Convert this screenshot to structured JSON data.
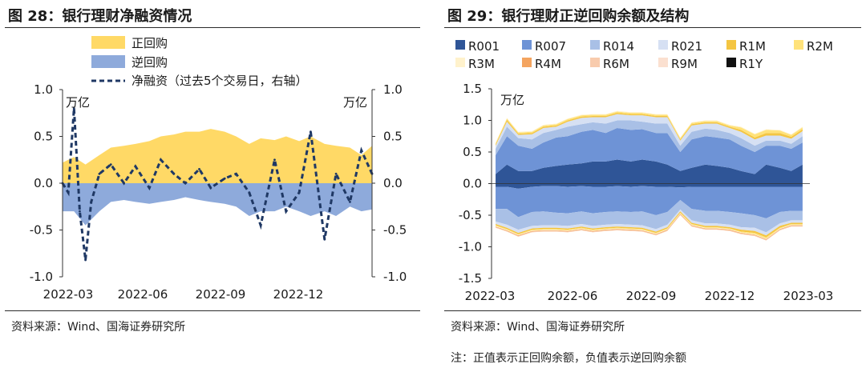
{
  "left": {
    "title": "图 28：银行理财净融资情况",
    "source": "资料来源：Wind、国海证券研究所",
    "left_unit": "万亿",
    "right_unit": "万亿"
  },
  "right": {
    "title": "图 29：银行理财正逆回购余额及结构",
    "source": "资料来源：Wind、国海证券研究所",
    "note": "注：正值表示正回购余额，负值表示逆回购余额",
    "unit": "万亿"
  },
  "colors": {
    "repo": "#ffd966",
    "reverse_repo": "#8eaadb",
    "net": "#1f3864",
    "R001": "#2f5597",
    "R007": "#6e93d6",
    "R014": "#a9c0e6",
    "R021": "#d6e0f3",
    "R1M": "#f4c542",
    "R2M": "#ffe27a",
    "R3M": "#fff2cc",
    "R4M": "#f4a460",
    "R6M": "#f8cbad",
    "R9M": "#fbe0d0",
    "R1Y": "#111111"
  },
  "chart_data": [
    {
      "type": "area",
      "x_ticks": [
        "2022-03",
        "2022-06",
        "2022-09",
        "2022-12"
      ],
      "x_range": [
        "2022-02-15",
        "2023-02-28"
      ],
      "ylim_left": [
        -1.0,
        1.0
      ],
      "ylim_right": [
        -1.0,
        1.0
      ],
      "y_ticks_left": [
        "1.0",
        "0.5",
        "0.0",
        "-0.5",
        "-1.0"
      ],
      "y_ticks_right": [
        "1.0",
        "0.5",
        "0.0",
        "-0.5",
        "-1.0"
      ],
      "series": [
        {
          "name": "正回购",
          "axis": "left",
          "x": [
            "2022-02-15",
            "2022-03-01",
            "2022-03-15",
            "2022-04-01",
            "2022-04-15",
            "2022-05-01",
            "2022-05-15",
            "2022-06-01",
            "2022-06-15",
            "2022-07-01",
            "2022-07-15",
            "2022-08-01",
            "2022-08-15",
            "2022-09-01",
            "2022-09-15",
            "2022-10-01",
            "2022-10-15",
            "2022-11-01",
            "2022-11-15",
            "2022-12-01",
            "2022-12-15",
            "2023-01-01",
            "2023-01-15",
            "2023-02-01",
            "2023-02-15",
            "2023-02-28"
          ],
          "values": [
            0.22,
            0.28,
            0.2,
            0.3,
            0.38,
            0.4,
            0.42,
            0.45,
            0.5,
            0.52,
            0.55,
            0.55,
            0.58,
            0.55,
            0.5,
            0.42,
            0.48,
            0.46,
            0.5,
            0.45,
            0.5,
            0.42,
            0.4,
            0.38,
            0.3,
            0.4
          ]
        },
        {
          "name": "逆回购",
          "axis": "left",
          "x": [
            "2022-02-15",
            "2022-03-01",
            "2022-03-15",
            "2022-04-01",
            "2022-04-15",
            "2022-05-01",
            "2022-05-15",
            "2022-06-01",
            "2022-06-15",
            "2022-07-01",
            "2022-07-15",
            "2022-08-01",
            "2022-08-15",
            "2022-09-01",
            "2022-09-15",
            "2022-10-01",
            "2022-10-15",
            "2022-11-01",
            "2022-11-15",
            "2022-12-01",
            "2022-12-15",
            "2023-01-01",
            "2023-01-15",
            "2023-02-01",
            "2023-02-15",
            "2023-02-28"
          ],
          "values": [
            -0.3,
            -0.3,
            -0.45,
            -0.3,
            -0.2,
            -0.18,
            -0.2,
            -0.22,
            -0.2,
            -0.18,
            -0.15,
            -0.18,
            -0.2,
            -0.22,
            -0.25,
            -0.35,
            -0.3,
            -0.3,
            -0.25,
            -0.3,
            -0.35,
            -0.3,
            -0.35,
            -0.25,
            -0.3,
            -0.28
          ]
        },
        {
          "name": "净融资（过去5个交易日，右轴）",
          "axis": "right",
          "x": [
            "2022-02-15",
            "2022-02-22",
            "2022-03-01",
            "2022-03-08",
            "2022-03-15",
            "2022-03-22",
            "2022-04-01",
            "2022-04-15",
            "2022-05-01",
            "2022-05-15",
            "2022-06-01",
            "2022-06-15",
            "2022-07-01",
            "2022-07-15",
            "2022-08-01",
            "2022-08-15",
            "2022-09-01",
            "2022-09-15",
            "2022-10-01",
            "2022-10-15",
            "2022-11-01",
            "2022-11-15",
            "2022-12-01",
            "2022-12-15",
            "2023-01-01",
            "2023-01-15",
            "2023-02-01",
            "2023-02-15",
            "2023-02-28"
          ],
          "values": [
            0.0,
            -0.1,
            0.8,
            -0.3,
            -0.82,
            -0.2,
            0.1,
            0.2,
            0.0,
            0.18,
            -0.05,
            0.25,
            0.1,
            0.0,
            0.15,
            -0.05,
            0.05,
            0.1,
            -0.1,
            -0.45,
            0.25,
            -0.3,
            -0.1,
            0.55,
            -0.6,
            0.1,
            -0.2,
            0.35,
            0.1
          ]
        }
      ]
    },
    {
      "type": "area",
      "x_ticks": [
        "2022-03",
        "2022-06",
        "2022-09",
        "2022-12",
        "2023-03"
      ],
      "x_range": [
        "2022-02-10",
        "2023-03-10"
      ],
      "ylim": [
        -1.5,
        1.5
      ],
      "y_ticks": [
        "1.5",
        "1.0",
        "0.5",
        "0.0",
        "-0.5",
        "-1.0",
        "-1.5"
      ],
      "x": [
        "2022-02-15",
        "2022-03-01",
        "2022-03-15",
        "2022-04-01",
        "2022-04-15",
        "2022-05-01",
        "2022-05-15",
        "2022-06-01",
        "2022-06-15",
        "2022-07-01",
        "2022-07-15",
        "2022-08-01",
        "2022-08-15",
        "2022-09-01",
        "2022-09-15",
        "2022-10-01",
        "2022-10-15",
        "2022-11-01",
        "2022-11-15",
        "2022-12-01",
        "2022-12-15",
        "2023-01-01",
        "2023-01-15",
        "2023-02-01",
        "2023-02-15",
        "2023-03-01"
      ],
      "series": [
        {
          "name": "R001",
          "positive": [
            0.15,
            0.3,
            0.2,
            0.2,
            0.25,
            0.28,
            0.3,
            0.32,
            0.35,
            0.35,
            0.38,
            0.35,
            0.38,
            0.35,
            0.3,
            0.2,
            0.25,
            0.3,
            0.28,
            0.25,
            0.2,
            0.15,
            0.3,
            0.25,
            0.2,
            0.3
          ],
          "negative": [
            -0.05,
            -0.05,
            -0.08,
            -0.05,
            -0.04,
            -0.04,
            -0.05,
            -0.04,
            -0.05,
            -0.05,
            -0.04,
            -0.05,
            -0.04,
            -0.05,
            -0.05,
            -0.06,
            -0.05,
            -0.05,
            -0.05,
            -0.05,
            -0.05,
            -0.05,
            -0.05,
            -0.05,
            -0.05,
            -0.05
          ]
        },
        {
          "name": "R007",
          "positive": [
            0.3,
            0.45,
            0.4,
            0.35,
            0.4,
            0.45,
            0.45,
            0.5,
            0.5,
            0.45,
            0.5,
            0.5,
            0.48,
            0.45,
            0.5,
            0.3,
            0.45,
            0.45,
            0.45,
            0.45,
            0.4,
            0.35,
            0.3,
            0.35,
            0.35,
            0.35
          ],
          "negative": [
            -0.35,
            -0.35,
            -0.45,
            -0.4,
            -0.4,
            -0.42,
            -0.42,
            -0.4,
            -0.42,
            -0.4,
            -0.4,
            -0.4,
            -0.4,
            -0.45,
            -0.4,
            -0.2,
            -0.35,
            -0.38,
            -0.38,
            -0.4,
            -0.42,
            -0.45,
            -0.5,
            -0.4,
            -0.38,
            -0.38
          ]
        },
        {
          "name": "R014",
          "positive": [
            0.1,
            0.15,
            0.12,
            0.15,
            0.15,
            0.12,
            0.15,
            0.12,
            0.12,
            0.15,
            0.12,
            0.15,
            0.12,
            0.15,
            0.15,
            0.1,
            0.12,
            0.12,
            0.12,
            0.1,
            0.12,
            0.1,
            0.08,
            0.08,
            0.08,
            0.1
          ],
          "negative": [
            -0.2,
            -0.25,
            -0.2,
            -0.22,
            -0.22,
            -0.2,
            -0.2,
            -0.2,
            -0.2,
            -0.2,
            -0.2,
            -0.2,
            -0.22,
            -0.22,
            -0.2,
            -0.15,
            -0.18,
            -0.2,
            -0.2,
            -0.2,
            -0.22,
            -0.2,
            -0.22,
            -0.18,
            -0.15,
            -0.15
          ]
        },
        {
          "name": "R021",
          "positive": [
            0.05,
            0.08,
            0.05,
            0.08,
            0.08,
            0.05,
            0.08,
            0.1,
            0.08,
            0.1,
            0.1,
            0.08,
            0.1,
            0.1,
            0.1,
            0.08,
            0.1,
            0.08,
            0.1,
            0.08,
            0.1,
            0.1,
            0.08,
            0.08,
            0.08,
            0.08
          ],
          "negative": [
            -0.04,
            -0.05,
            -0.05,
            -0.04,
            -0.04,
            -0.04,
            -0.04,
            -0.04,
            -0.04,
            -0.04,
            -0.04,
            -0.04,
            -0.04,
            -0.04,
            -0.04,
            -0.03,
            -0.04,
            -0.04,
            -0.04,
            -0.04,
            -0.04,
            -0.05,
            -0.05,
            -0.04,
            -0.04,
            -0.04
          ]
        },
        {
          "name": "R1M",
          "positive": [
            0.02,
            0.03,
            0.02,
            0.02,
            0.02,
            0.02,
            0.02,
            0.02,
            0.02,
            0.02,
            0.02,
            0.02,
            0.02,
            0.02,
            0.02,
            0.02,
            0.02,
            0.02,
            0.02,
            0.02,
            0.03,
            0.03,
            0.04,
            0.04,
            0.03,
            0.03
          ],
          "negative": [
            -0.02,
            -0.02,
            -0.02,
            -0.02,
            -0.02,
            -0.02,
            -0.02,
            -0.02,
            -0.02,
            -0.02,
            -0.02,
            -0.02,
            -0.02,
            -0.02,
            -0.02,
            -0.02,
            -0.02,
            -0.02,
            -0.02,
            -0.02,
            -0.03,
            -0.03,
            -0.03,
            -0.03,
            -0.02,
            -0.02
          ]
        },
        {
          "name": "R2M",
          "positive": [
            0.02,
            0.02,
            0.02,
            0.02,
            0.02,
            0.02,
            0.02,
            0.02,
            0.02,
            0.02,
            0.02,
            0.02,
            0.02,
            0.02,
            0.02,
            0.02,
            0.02,
            0.02,
            0.02,
            0.02,
            0.04,
            0.05,
            0.05,
            0.04,
            0.03,
            0.03
          ],
          "negative": [
            -0.01,
            -0.01,
            -0.01,
            -0.01,
            -0.01,
            -0.01,
            -0.01,
            -0.01,
            -0.01,
            -0.01,
            -0.01,
            -0.01,
            -0.01,
            -0.01,
            -0.01,
            -0.01,
            -0.01,
            -0.01,
            -0.01,
            -0.01,
            -0.01,
            -0.02,
            -0.02,
            -0.01,
            -0.01,
            -0.01
          ]
        },
        {
          "name": "R3M",
          "positive": [
            0.01,
            0.01,
            0.01,
            0.01,
            0.01,
            0.01,
            0.01,
            0.01,
            0.01,
            0.01,
            0.01,
            0.01,
            0.01,
            0.01,
            0.01,
            0.01,
            0.01,
            0.01,
            0.01,
            0.01,
            0.01,
            0.01,
            0.01,
            0.01,
            0.01,
            0.01
          ],
          "negative": [
            -0.01,
            -0.01,
            -0.01,
            -0.01,
            -0.01,
            -0.01,
            -0.01,
            -0.01,
            -0.01,
            -0.01,
            -0.01,
            -0.01,
            -0.01,
            -0.01,
            -0.01,
            -0.01,
            -0.01,
            -0.01,
            -0.01,
            -0.01,
            -0.01,
            -0.01,
            -0.01,
            -0.01,
            -0.01,
            -0.01
          ]
        },
        {
          "name": "R4M",
          "positive": [
            0,
            0,
            0,
            0,
            0,
            0,
            0,
            0,
            0,
            0,
            0,
            0,
            0,
            0,
            0,
            0,
            0,
            0,
            0,
            0,
            0,
            0,
            0,
            0,
            0,
            0
          ],
          "negative": [
            -0.01,
            -0.01,
            -0.01,
            -0.01,
            -0.01,
            -0.01,
            -0.01,
            -0.01,
            -0.01,
            -0.01,
            -0.01,
            -0.01,
            -0.01,
            -0.01,
            -0.01,
            -0.01,
            -0.01,
            -0.01,
            -0.01,
            -0.01,
            -0.01,
            -0.01,
            -0.01,
            -0.01,
            -0.01,
            -0.01
          ]
        },
        {
          "name": "R6M",
          "positive": [
            0,
            0,
            0,
            0,
            0,
            0,
            0,
            0,
            0,
            0,
            0,
            0,
            0,
            0,
            0,
            0,
            0,
            0,
            0,
            0,
            0,
            0,
            0,
            0,
            0,
            0
          ],
          "negative": [
            -0.01,
            -0.01,
            -0.01,
            -0.01,
            -0.01,
            -0.01,
            -0.01,
            -0.01,
            -0.01,
            -0.01,
            -0.01,
            -0.01,
            -0.01,
            -0.01,
            -0.01,
            -0.01,
            -0.01,
            -0.01,
            -0.01,
            -0.01,
            -0.01,
            -0.01,
            -0.01,
            -0.01,
            -0.01,
            -0.01
          ]
        },
        {
          "name": "R9M",
          "positive": [
            0,
            0,
            0,
            0,
            0,
            0,
            0,
            0,
            0,
            0,
            0,
            0,
            0,
            0,
            0,
            0,
            0,
            0,
            0,
            0,
            0,
            0,
            0,
            0,
            0,
            0
          ],
          "negative": [
            0,
            0,
            0,
            0,
            0,
            0,
            0,
            0,
            0,
            0,
            0,
            0,
            0,
            0,
            0,
            0,
            0,
            0,
            0,
            0,
            0,
            0,
            0,
            0,
            0,
            0
          ]
        },
        {
          "name": "R1Y",
          "positive": [
            0,
            0,
            0,
            0,
            0,
            0,
            0,
            0,
            0,
            0,
            0,
            0,
            0,
            0,
            0,
            0,
            0,
            0,
            0,
            0,
            0,
            0,
            0,
            0,
            0,
            0
          ],
          "negative": [
            0,
            0,
            0,
            0,
            0,
            0,
            0,
            0,
            0,
            0,
            0,
            0,
            0,
            0,
            0,
            0,
            0,
            0,
            0,
            0,
            0,
            0,
            0,
            0,
            0,
            0
          ]
        }
      ]
    }
  ]
}
